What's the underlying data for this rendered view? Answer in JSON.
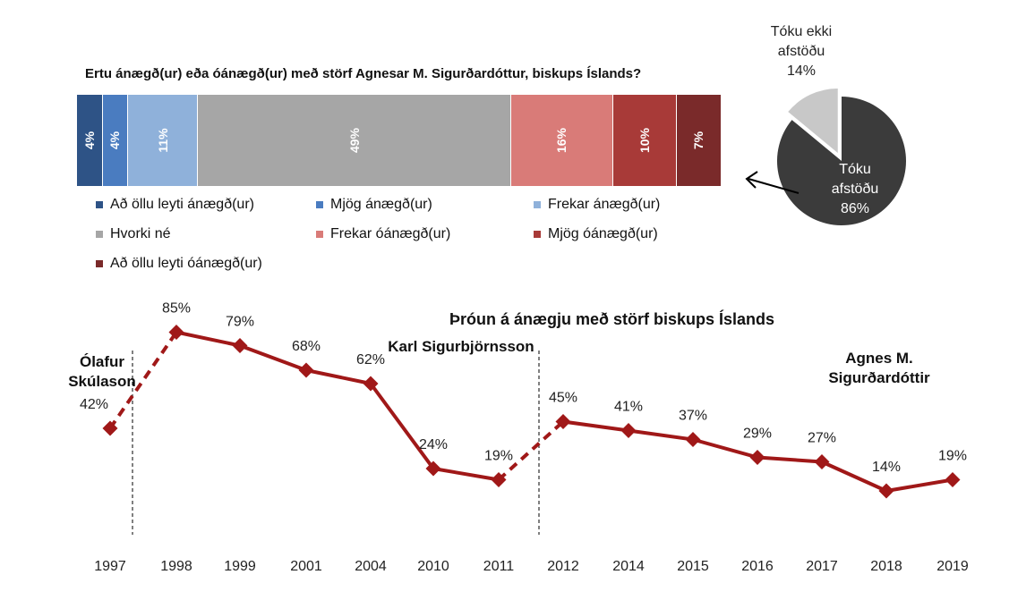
{
  "bar_chart": {
    "title": "Ertu ánægð(ur) eða óánægð(ur) með störf Agnesar M. Sigurðardóttur, biskups Íslands?",
    "segments": [
      {
        "label": "4%",
        "value": 4,
        "color": "#2e5386"
      },
      {
        "label": "4%",
        "value": 4,
        "color": "#4a7cc0"
      },
      {
        "label": "11%",
        "value": 11,
        "color": "#8fb1da"
      },
      {
        "label": "49%",
        "value": 49,
        "color": "#a6a6a6"
      },
      {
        "label": "16%",
        "value": 16,
        "color": "#d97b78"
      },
      {
        "label": "10%",
        "value": 10,
        "color": "#a83a38"
      },
      {
        "label": "7%",
        "value": 7,
        "color": "#7a2a2a"
      }
    ],
    "legend": [
      {
        "label": "Að öllu leyti ánægð(ur)",
        "color": "#2e5386"
      },
      {
        "label": "Mjög ánægð(ur)",
        "color": "#4a7cc0"
      },
      {
        "label": "Frekar ánægð(ur)",
        "color": "#8fb1da"
      },
      {
        "label": "Hvorki né",
        "color": "#a6a6a6"
      },
      {
        "label": "Frekar óánægð(ur)",
        "color": "#d97b78"
      },
      {
        "label": "Mjög óánægð(ur)",
        "color": "#a83a38"
      },
      {
        "label": "Að öllu leyti óánægð(ur)",
        "color": "#7a2a2a"
      }
    ]
  },
  "pie_chart": {
    "slices": [
      {
        "label_line1": "Tóku ekki",
        "label_line2": "afstöðu",
        "pct": "14%",
        "value": 14,
        "color": "#c8c8c8"
      },
      {
        "label_line1": "Tóku",
        "label_line2": "afstöðu",
        "pct": "86%",
        "value": 86,
        "color": "#3b3b3b"
      }
    ]
  },
  "line_chart": {
    "title": "Þróun á ánægju með störf biskups Íslands",
    "eras": [
      {
        "line1": "Ólafur",
        "line2": "Skúlason"
      },
      {
        "line1": "Karl Sigurbjörnsson",
        "line2": ""
      },
      {
        "line1": "Agnes M.",
        "line2": "Sigurðardóttir"
      }
    ],
    "line_color": "#a01818"
  },
  "chart_data": [
    {
      "type": "bar",
      "title": "Ertu ánægð(ur) eða óánægð(ur) með störf Agnesar M. Sigurðardóttur, biskups Íslands?",
      "categories": [
        "Að öllu leyti ánægð(ur)",
        "Mjög ánægð(ur)",
        "Frekar ánægð(ur)",
        "Hvorki né",
        "Frekar óánægð(ur)",
        "Mjög óánægð(ur)",
        "Að öllu leyti óánægð(ur)"
      ],
      "values": [
        4,
        4,
        11,
        49,
        16,
        10,
        7
      ],
      "stacked": true
    },
    {
      "type": "pie",
      "categories": [
        "Tóku ekki afstöðu",
        "Tóku afstöðu"
      ],
      "values": [
        14,
        86
      ]
    },
    {
      "type": "line",
      "title": "Þróun á ánægju með störf biskups Íslands",
      "x": [
        "1997",
        "1998",
        "1999",
        "2001",
        "2004",
        "2010",
        "2011",
        "2012",
        "2014",
        "2015",
        "2016",
        "2017",
        "2018",
        "2019"
      ],
      "values": [
        42,
        85,
        79,
        68,
        62,
        24,
        19,
        45,
        41,
        37,
        29,
        27,
        14,
        19
      ],
      "labels": [
        "42%",
        "85%",
        "79%",
        "68%",
        "62%",
        "24%",
        "19%",
        "45%",
        "41%",
        "37%",
        "29%",
        "27%",
        "14%",
        "19%"
      ],
      "dashed_transitions": [
        "1997-1998",
        "2011-2012"
      ]
    }
  ]
}
